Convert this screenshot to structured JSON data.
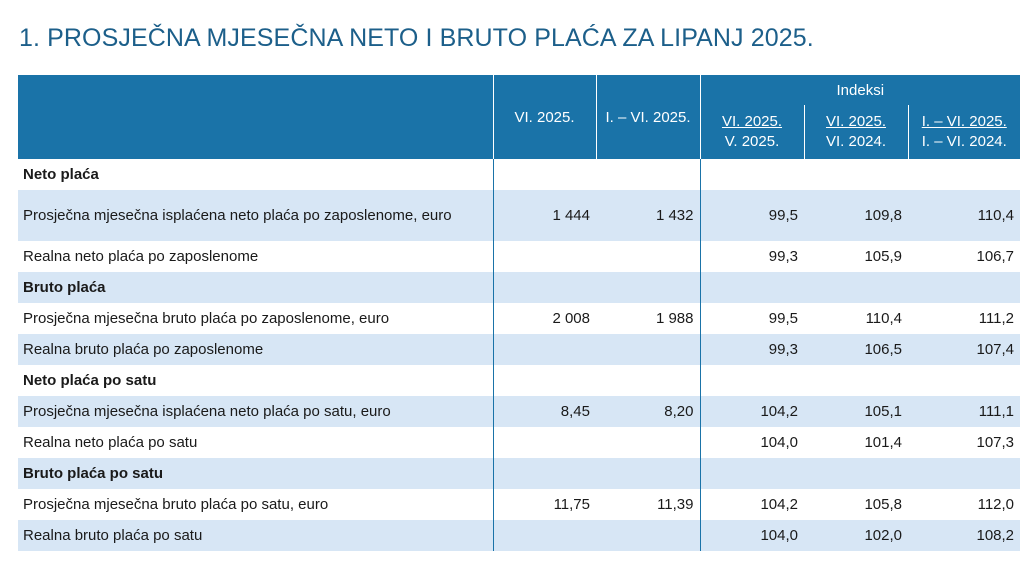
{
  "title": "1. PROSJEČNA MJESEČNA NETO I BRUTO PLAĆA ZA LIPANJ 2025.",
  "header": {
    "col1": "VI. 2025.",
    "col2": "I. – VI. 2025.",
    "group": "Indeksi",
    "idx1": {
      "num": "VI. 2025.",
      "den": "V. 2025."
    },
    "idx2": {
      "num": "VI. 2025.",
      "den": "VI. 2024."
    },
    "idx3": {
      "num": "I. – VI. 2025.",
      "den": "I. – VI. 2024."
    }
  },
  "rows": [
    {
      "label": "Neto plaća",
      "section": true,
      "values": [
        "",
        "",
        "",
        "",
        ""
      ]
    },
    {
      "label": "Prosječna mjesečna isplaćena neto plaća po zaposlenome, euro",
      "section": false,
      "values": [
        "1 444",
        "1 432",
        "99,5",
        "109,8",
        "110,4"
      ]
    },
    {
      "label": "Realna neto plaća po zaposlenome",
      "section": false,
      "values": [
        "",
        "",
        "99,3",
        "105,9",
        "106,7"
      ]
    },
    {
      "label": "Bruto plaća",
      "section": true,
      "values": [
        "",
        "",
        "",
        "",
        ""
      ]
    },
    {
      "label": "Prosječna mjesečna bruto plaća po zaposlenome, euro",
      "section": false,
      "values": [
        "2 008",
        "1 988",
        "99,5",
        "110,4",
        "111,2"
      ]
    },
    {
      "label": "Realna bruto plaća po zaposlenome",
      "section": false,
      "values": [
        "",
        "",
        "99,3",
        "106,5",
        "107,4"
      ]
    },
    {
      "label": "Neto plaća po satu",
      "section": true,
      "values": [
        "",
        "",
        "",
        "",
        ""
      ]
    },
    {
      "label": "Prosječna mjesečna isplaćena neto plaća po satu, euro",
      "section": false,
      "values": [
        "8,45",
        "8,20",
        "104,2",
        "105,1",
        "111,1"
      ]
    },
    {
      "label": "Realna neto plaća po satu",
      "section": false,
      "values": [
        "",
        "",
        "104,0",
        "101,4",
        "107,3"
      ]
    },
    {
      "label": "Bruto plaća po satu",
      "section": true,
      "values": [
        "",
        "",
        "",
        "",
        ""
      ]
    },
    {
      "label": "Prosječna mjesečna bruto plaća po satu, euro",
      "section": false,
      "values": [
        "11,75",
        "11,39",
        "104,2",
        "105,8",
        "112,0"
      ]
    },
    {
      "label": "Realna bruto plaća po satu",
      "section": false,
      "values": [
        "",
        "",
        "104,0",
        "102,0",
        "108,2"
      ]
    }
  ]
}
